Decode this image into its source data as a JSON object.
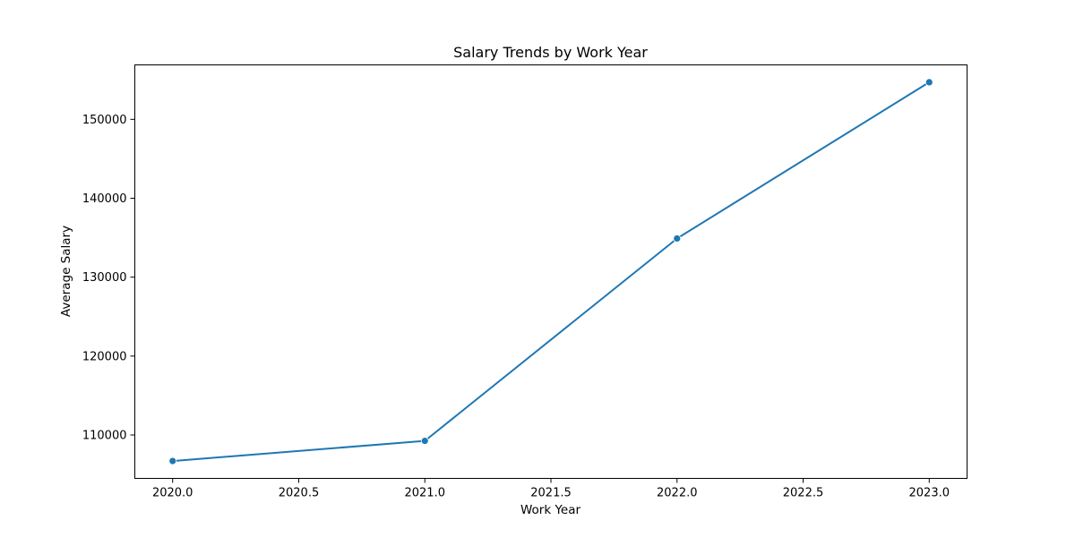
{
  "chart_data": {
    "type": "line",
    "title": "Salary Trends by Work Year",
    "xlabel": "Work Year",
    "ylabel": "Average Salary",
    "xlim": [
      2019.85,
      2023.15
    ],
    "ylim": [
      104500,
      156900
    ],
    "xticks": [
      2020.0,
      2020.5,
      2021.0,
      2021.5,
      2022.0,
      2022.5,
      2023.0
    ],
    "xtick_labels": [
      "2020.0",
      "2020.5",
      "2021.0",
      "2021.5",
      "2022.0",
      "2022.5",
      "2023.0"
    ],
    "yticks": [
      110000,
      120000,
      130000,
      140000,
      150000
    ],
    "ytick_labels": [
      "110000",
      "120000",
      "130000",
      "140000",
      "150000"
    ],
    "grid": false,
    "series": [
      {
        "x": [
          2020,
          2021,
          2022,
          2023
        ],
        "y": [
          106700,
          109250,
          134900,
          154700
        ],
        "color": "#1f77b4",
        "marker": "circle"
      }
    ]
  }
}
